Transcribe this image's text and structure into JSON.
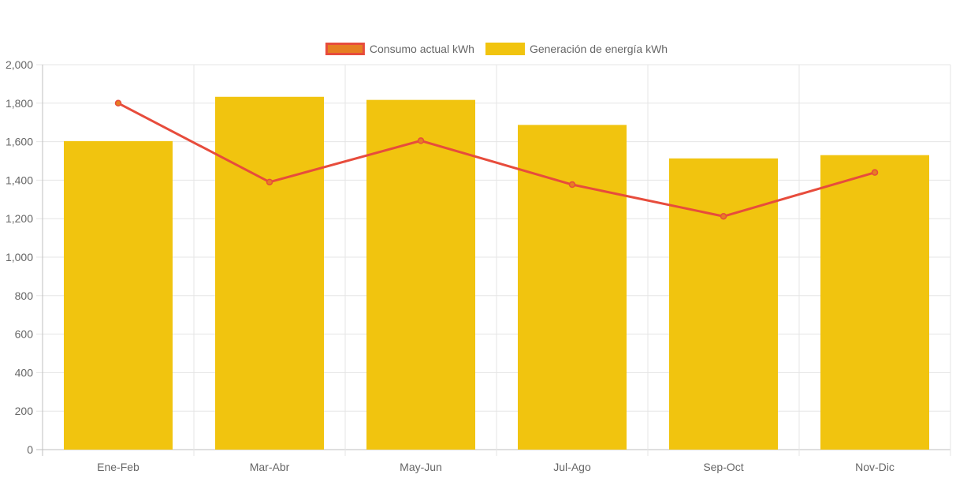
{
  "chart_data": {
    "type": "bar",
    "categories": [
      "Ene-Feb",
      "Mar-Abr",
      "May-Jun",
      "Jul-Ago",
      "Sep-Oct",
      "Nov-Dic"
    ],
    "series": [
      {
        "name": "Consumo actual kWh",
        "type": "line",
        "values": [
          1800,
          1390,
          1605,
          1377,
          1212,
          1440
        ],
        "color": "#e74c3c",
        "point_fill": "#e67e22"
      },
      {
        "name": "Generación de energía kWh",
        "type": "bar",
        "values": [
          1603,
          1833,
          1817,
          1687,
          1513,
          1530
        ],
        "color": "#f1c40f"
      }
    ],
    "legend_items": [
      {
        "label": "Consumo actual kWh",
        "fill": "#e67e22",
        "border": "#e74c3c"
      },
      {
        "label": "Generación de energía kWh",
        "fill": "#f1c40f",
        "border": "#f1c40f"
      }
    ],
    "y_ticks": [
      "0",
      "200",
      "400",
      "600",
      "800",
      "1,000",
      "1,200",
      "1,400",
      "1,600",
      "1,800",
      "2,000"
    ],
    "ylim": [
      0,
      2000
    ],
    "grid": true,
    "legend_position": "top-center",
    "title": "",
    "xlabel": "",
    "ylabel": ""
  }
}
